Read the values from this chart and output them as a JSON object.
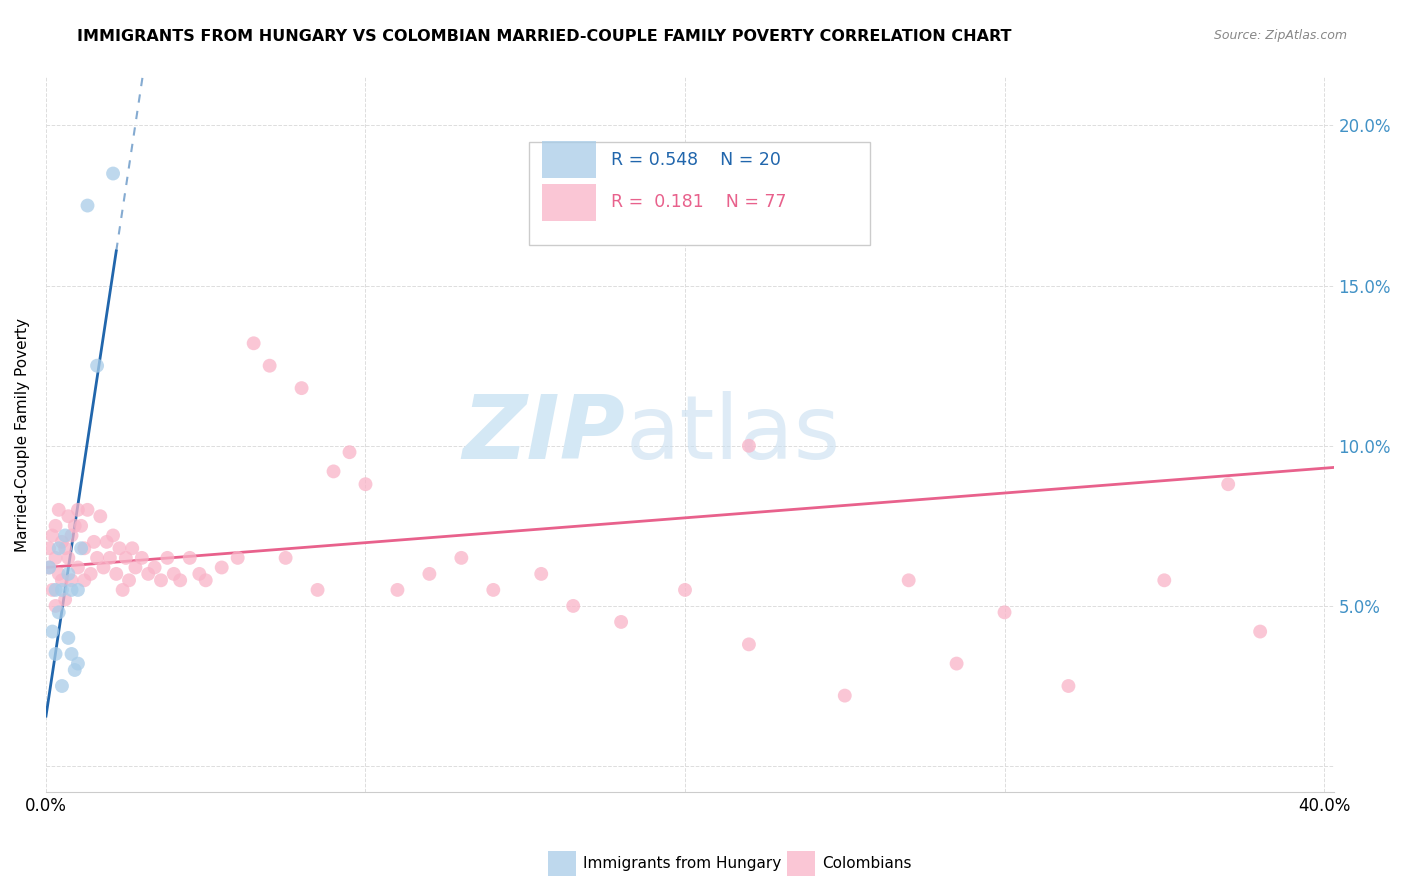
{
  "title": "IMMIGRANTS FROM HUNGARY VS COLOMBIAN MARRIED-COUPLE FAMILY POVERTY CORRELATION CHART",
  "source": "Source: ZipAtlas.com",
  "ylabel": "Married-Couple Family Poverty",
  "xlim": [
    0.0,
    0.403
  ],
  "ylim": [
    -0.008,
    0.215
  ],
  "yticks": [
    0.0,
    0.05,
    0.1,
    0.15,
    0.2
  ],
  "ytick_labels_right": [
    "",
    "5.0%",
    "10.0%",
    "15.0%",
    "20.0%"
  ],
  "xtick_positions": [
    0.0,
    0.1,
    0.2,
    0.3,
    0.4
  ],
  "xtick_labels": [
    "0.0%",
    "",
    "",
    "",
    "40.0%"
  ],
  "legend_labels": [
    "Immigrants from Hungary",
    "Colombians"
  ],
  "r_hungary": "0.548",
  "n_hungary": "20",
  "r_colombian": "0.181",
  "n_colombian": "77",
  "blue_dot_color": "#a8cce8",
  "pink_dot_color": "#f9b4c8",
  "blue_line_color": "#2166ac",
  "pink_line_color": "#e8618c",
  "right_axis_color": "#4292c6",
  "hungary_x": [
    0.001,
    0.002,
    0.003,
    0.003,
    0.004,
    0.004,
    0.005,
    0.005,
    0.006,
    0.007,
    0.007,
    0.008,
    0.008,
    0.009,
    0.01,
    0.01,
    0.011,
    0.013,
    0.016,
    0.021
  ],
  "hungary_y": [
    0.062,
    0.042,
    0.055,
    0.035,
    0.068,
    0.048,
    0.025,
    0.055,
    0.072,
    0.06,
    0.04,
    0.055,
    0.035,
    0.03,
    0.032,
    0.055,
    0.068,
    0.175,
    0.125,
    0.185
  ],
  "colombian_x": [
    0.001,
    0.001,
    0.002,
    0.002,
    0.003,
    0.003,
    0.003,
    0.004,
    0.004,
    0.005,
    0.005,
    0.006,
    0.006,
    0.007,
    0.007,
    0.008,
    0.008,
    0.009,
    0.01,
    0.01,
    0.011,
    0.012,
    0.012,
    0.013,
    0.014,
    0.015,
    0.016,
    0.017,
    0.018,
    0.019,
    0.02,
    0.021,
    0.022,
    0.023,
    0.024,
    0.025,
    0.026,
    0.027,
    0.028,
    0.03,
    0.032,
    0.034,
    0.036,
    0.038,
    0.04,
    0.042,
    0.045,
    0.048,
    0.05,
    0.055,
    0.06,
    0.065,
    0.07,
    0.075,
    0.08,
    0.085,
    0.09,
    0.095,
    0.1,
    0.11,
    0.12,
    0.13,
    0.14,
    0.155,
    0.165,
    0.18,
    0.2,
    0.22,
    0.25,
    0.27,
    0.3,
    0.32,
    0.35,
    0.37,
    0.38,
    0.285,
    0.22
  ],
  "colombian_y": [
    0.068,
    0.062,
    0.072,
    0.055,
    0.075,
    0.065,
    0.05,
    0.08,
    0.06,
    0.07,
    0.058,
    0.068,
    0.052,
    0.078,
    0.065,
    0.072,
    0.058,
    0.075,
    0.08,
    0.062,
    0.075,
    0.068,
    0.058,
    0.08,
    0.06,
    0.07,
    0.065,
    0.078,
    0.062,
    0.07,
    0.065,
    0.072,
    0.06,
    0.068,
    0.055,
    0.065,
    0.058,
    0.068,
    0.062,
    0.065,
    0.06,
    0.062,
    0.058,
    0.065,
    0.06,
    0.058,
    0.065,
    0.06,
    0.058,
    0.062,
    0.065,
    0.132,
    0.125,
    0.065,
    0.118,
    0.055,
    0.092,
    0.098,
    0.088,
    0.055,
    0.06,
    0.065,
    0.055,
    0.06,
    0.05,
    0.045,
    0.055,
    0.038,
    0.022,
    0.058,
    0.048,
    0.025,
    0.058,
    0.088,
    0.042,
    0.032,
    0.1
  ],
  "grid_color": "#dddddd",
  "bg_color": "#ffffff"
}
